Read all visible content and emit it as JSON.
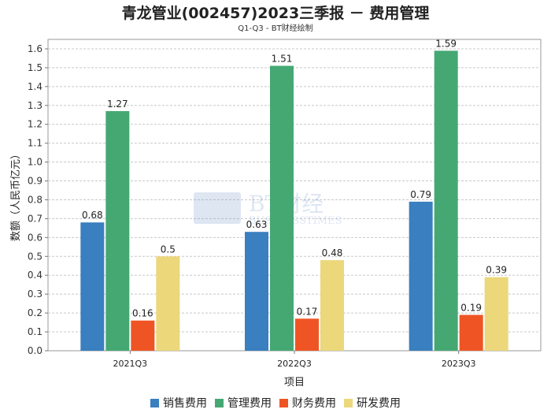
{
  "title": "青龙管业(002457)2023三季报 － 费用管理",
  "subtitle": "Q1-Q3 - BT财经绘制",
  "watermark": {
    "main": "BT财经",
    "sub": "BUSINESSTIMES"
  },
  "chart_data": {
    "type": "bar",
    "title": "青龙管业(002457)2023三季报 － 费用管理",
    "subtitle": "Q1-Q3 - BT财经绘制",
    "xlabel": "项目",
    "ylabel": "数额（人民币亿元）",
    "categories": [
      "2021Q3",
      "2022Q3",
      "2023Q3"
    ],
    "ylim": [
      0,
      1.65
    ],
    "yticks": [
      "0.0",
      "0.1",
      "0.2",
      "0.3",
      "0.4",
      "0.5",
      "0.6",
      "0.7",
      "0.8",
      "0.9",
      "1.0",
      "1.1",
      "1.2",
      "1.3",
      "1.4",
      "1.5",
      "1.6"
    ],
    "grid": true,
    "legend_position": "bottom",
    "series": [
      {
        "name": "销售费用",
        "color": "#3a7fbf",
        "values": [
          0.68,
          0.63,
          0.79
        ],
        "labels": [
          "0.68",
          "0.63",
          "0.79"
        ]
      },
      {
        "name": "管理费用",
        "color": "#45a873",
        "values": [
          1.27,
          1.51,
          1.59
        ],
        "labels": [
          "1.27",
          "1.51",
          "1.59"
        ]
      },
      {
        "name": "财务费用",
        "color": "#ef5524",
        "values": [
          0.16,
          0.17,
          0.19
        ],
        "labels": [
          "0.16",
          "0.17",
          "0.19"
        ]
      },
      {
        "name": "研发费用",
        "color": "#ecd77b",
        "values": [
          0.5,
          0.48,
          0.39
        ],
        "labels": [
          "0.5",
          "0.48",
          "0.39"
        ]
      }
    ]
  }
}
